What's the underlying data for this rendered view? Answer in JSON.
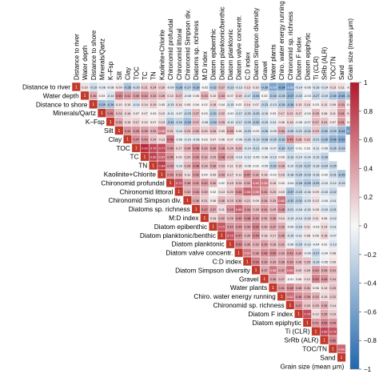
{
  "chart_data": {
    "type": "heatmap",
    "title": "",
    "layout": "upper-triangle",
    "variables": [
      "Distance to river",
      "Water depth",
      "Distance to shore",
      "Minerals/Qartz",
      "K–Fsp",
      "Silt",
      "Clay",
      "TOC",
      "TC",
      "TN",
      "Kaolinite+Chlorite",
      "Chironomid profundal",
      "Chironomid littoral",
      "Chironomid Simpson div.",
      "Diatoms sp. richness",
      "M:D index",
      "Diatom epibenthic",
      "Diatom planktonic/benthic",
      "Diatom planktonic",
      "Diatom valve concentr.",
      "C:D index",
      "Diatom Simpson diversity",
      "Gravel",
      "Water plants",
      "Chiro. water energy running",
      "Chironomid sp. richness",
      "Diatom F index",
      "Diatom epiphytic",
      "Ti (CLR)",
      "SrRb (ALR)",
      "TOC/TN",
      "Sand",
      "Grain size (mean μm)"
    ],
    "rows": [
      [
        1,
        0.1,
        -0.19,
        -0.08,
        -0.08,
        0.09,
        -0.35,
        -0.2,
        0.21,
        0.24,
        0.2,
        -0.09,
        -0.39,
        -0.27,
        -0.39,
        -0.02,
        -0.32,
        0.27,
        -0.23,
        -0.13,
        0.13,
        0.1,
        -0.36,
        -0.57,
        -0.54,
        -0.59,
        -0.14,
        -0.06,
        -0.16,
        -0.14,
        0.13,
        0.11,
        -0.04
      ],
      [
        1,
        0.36,
        0.03,
        -0.14,
        0.5,
        0.41,
        0.4,
        0.42,
        0.33,
        0.28,
        0.13,
        0.27,
        -0.08,
        0.05,
        0.33,
        0.1,
        0.33,
        0.07,
        0.19,
        -0.17,
        -0.34,
        0.02,
        -0.33,
        -0.28,
        -0.47,
        -0.22,
        -0.03,
        -0.27,
        -0.19,
        -0.35,
        -0.46,
        -0.34
      ],
      [
        1,
        -0.39,
        -0.36,
        0.1,
        0.1,
        -0.14,
        0.14,
        0.19,
        0.05,
        -0.15,
        0.14,
        0.05,
        0.04,
        0.02,
        0.18,
        0.04,
        -0.15,
        0.02,
        0.14,
        0.07,
        -0.23,
        -0.13,
        -0.28,
        -0.38,
        0.13,
        0.14,
        0.03,
        0.12,
        0.09,
        0.33,
        0.02
      ],
      [
        1,
        0.51,
        0.24,
        0.16,
        0.07,
        0.07,
        0.03,
        0.1,
        -0.11,
        -0.07,
        -0.23,
        0.27,
        0.03,
        -0.31,
        0.22,
        -0.02,
        -0.17,
        -0.2,
        -0.25,
        -0.15,
        0.03,
        0.17,
        0.21,
        0.17,
        -0.04,
        0.28,
        0.08,
        0.11,
        0.41,
        0.11
      ],
      [
        1,
        0.35,
        0.15,
        0.17,
        0.1,
        0.07,
        0.13,
        -0.34,
        -0.24,
        -0.4,
        0.27,
        -0.08,
        -0.34,
        0.25,
        -0.12,
        -0.17,
        -0.23,
        -0.32,
        -0.19,
        -0.11,
        0.08,
        0.16,
        -0.05,
        -0.07,
        0.27,
        0.24,
        0.07,
        0.41,
        0.02
      ],
      [
        1,
        0.44,
        0.43,
        0.39,
        0.33,
        0.56,
        0.21,
        -0.14,
        0.23,
        0.3,
        0.2,
        0.26,
        0.09,
        0.39,
        0.05,
        -0.23,
        0.03,
        -0.26,
        -0.09,
        0.34,
        -0.25,
        -0.21,
        -0.24,
        0.23,
        -0.32,
        -0.29,
        -0.44,
        -0.63
      ],
      [
        1,
        0.47,
        0.43,
        0.24,
        0.13,
        0.55,
        -0.05,
        -0.1,
        -0.08,
        0.03,
        0.07,
        0.06,
        0.07,
        -0.06,
        -0.2,
        -0.19,
        -0.28,
        -0.25,
        -0.32,
        0.45,
        0.28,
        0.22,
        -0.21,
        -0.35,
        -0.46,
        -0.52
      ],
      [
        1,
        0.92,
        0.79,
        0.77,
        0.45,
        0.17,
        0.34,
        0.48,
        0.33,
        0.39,
        0.38,
        0.24,
        0.29,
        -0.14,
        -0.21,
        -0.08,
        -0.07,
        -0.3,
        -0.27,
        -0.01,
        0.02,
        -0.11,
        -0.05,
        -0.26,
        -0.29
      ],
      [
        1,
        0.8,
        0.67,
        0.45,
        0.09,
        0.2,
        0.43,
        0.32,
        0.25,
        0.48,
        0.25,
        -0.1,
        -0.12,
        -0.05,
        -0.06,
        -0.13,
        0.05,
        -0.19,
        -0.14,
        -0.14,
        -0.15,
        -0.26
      ],
      [
        1,
        0.84,
        0.43,
        -0.1,
        0.28,
        0.48,
        0.28,
        0.36,
        0.23,
        0.11,
        0.15,
        -0.06,
        0.02,
        -0.05,
        -0.3,
        0.28,
        -0.1,
        -0.23,
        -0.27,
        -0.16,
        -0.24,
        -0.25
      ],
      [
        1,
        0.43,
        0.33,
        0.11,
        0.42,
        0.04,
        0.09,
        0.33,
        0.17,
        0.11,
        0.47,
        0.32,
        0.16,
        -0.02,
        0.16,
        -0.18,
        -0.24,
        -0.23,
        -0.16,
        -0.02,
        -0.21,
        -0.35
      ],
      [
        1,
        0.72,
        0.38,
        0.41,
        0.42,
        0.3,
        0.02,
        0.19,
        0.24,
        0.32,
        0.6,
        0.56,
        0.16,
        0.04,
        -0.04,
        -0.26,
        -0.33,
        -0.29,
        -0.1,
        -0.12,
        -0.19
      ],
      [
        1,
        0.32,
        0.43,
        0.3,
        0.02,
        0.13,
        0.2,
        0.46,
        0.66,
        0.56,
        0.41,
        0.23,
        0.1,
        -0.37,
        -0.23,
        -0.16,
        0.09,
        -0.15,
        -0.22
      ],
      [
        1,
        0.36,
        0.21,
        0.08,
        0.3,
        0.23,
        0.3,
        0.21,
        0.09,
        0.34,
        0.25,
        0.6,
        -0.32,
        -0.31,
        -0.15,
        0.12,
        -0.04,
        -0.11
      ],
      [
        1,
        0.47,
        0.37,
        0.11,
        0.45,
        0.66,
        0.44,
        0.28,
        0.41,
        0.29,
        0.45,
        -0.21,
        -0.16,
        -0.15,
        0.08,
        -0.15,
        -0.21
      ],
      [
        1,
        0.16,
        0.32,
        0.29,
        0.45,
        0.48,
        0.42,
        0.32,
        0.36,
        0.14,
        -0.13,
        -0.14,
        -0.16,
        0.11,
        0.06,
        -0.12
      ],
      [
        1,
        0.71,
        0.42,
        0.44,
        0.39,
        0.52,
        0.3,
        0.37,
        0.32,
        -0.06,
        -0.18,
        0.11,
        -0.03,
        0.14,
        -0.11
      ],
      [
        1,
        0.72,
        0.47,
        0.3,
        0.49,
        0.18,
        0.17,
        0.36,
        -0.15,
        -0.11,
        0.08,
        0.06,
        0.18,
        -0.07
      ],
      [
        1,
        0.53,
        0.36,
        0.32,
        0.39,
        0.28,
        0.31,
        -0.06,
        -0.2,
        -0.13,
        -0.04,
        0.02,
        -0.13
      ],
      [
        1,
        0.57,
        0.38,
        0.48,
        0.5,
        0.33,
        0.43,
        0.34,
        -0.06,
        -0.27,
        -0.04,
        0.08
      ],
      [
        1,
        0.53,
        0.39,
        0.33,
        0.36,
        0.39,
        0.28,
        0.25,
        -0.19,
        -0.05,
        0.09
      ],
      [
        1,
        0.37,
        0.58,
        0.37,
        0.6,
        0.2,
        0.2,
        0.42,
        0.35,
        0.31
      ],
      [
        1,
        0.36,
        0.27,
        -0.01,
        0.06,
        0.12,
        0.52,
        0.45,
        0.24
      ],
      [
        1,
        0.41,
        0.48,
        0.36,
        0.31,
        0.06,
        0.13,
        0.23
      ],
      [
        1,
        0.62,
        0.46,
        0.39,
        0.32,
        0.15,
        0.22
      ],
      [
        1,
        0.47,
        0.23,
        0.25,
        0.35,
        0.14
      ],
      [
        1,
        0.76,
        0.12,
        0.35,
        0.19
      ],
      [
        1,
        0.41,
        0.53,
        0.44
      ],
      [
        1,
        0.8,
        0.74
      ],
      [
        1,
        0.52
      ],
      [
        1,
        0.64
      ],
      [
        1
      ],
      []
    ],
    "colorbar": {
      "min": -1,
      "max": 1,
      "ticks": [
        "1",
        "0.8",
        "0.6",
        "0.4",
        "0.2",
        "0",
        "−0.2",
        "−0.4",
        "−0.6",
        "−0.8",
        "−1"
      ]
    },
    "colors": {
      "positive": "#b2182b",
      "neutral": "#f7f7f7",
      "negative": "#2166ac",
      "diagonal": "#c0392b"
    }
  }
}
